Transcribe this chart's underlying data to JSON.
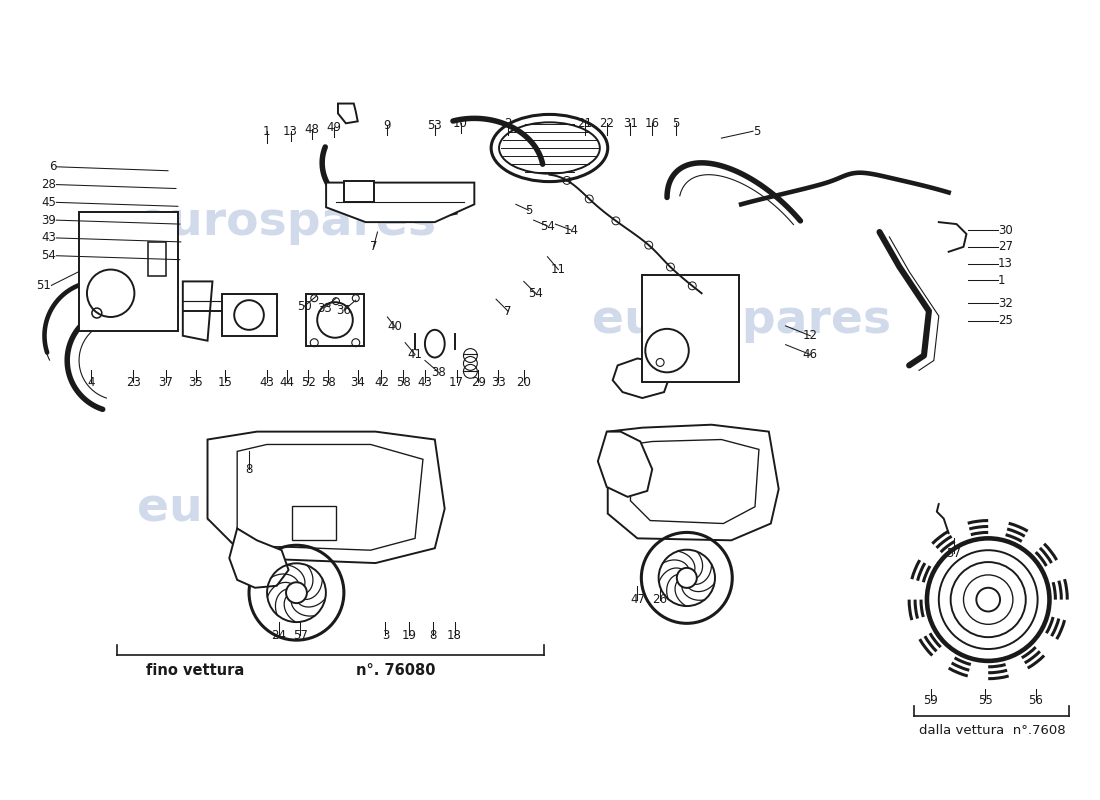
{
  "background_color": "#ffffff",
  "line_color": "#1a1a1a",
  "watermark1_text": "eurospares",
  "watermark2_text": "eurospares",
  "watermark_color": "#c8d4e8",
  "fino_vettura_text": "fino vettura",
  "fino_vettura_num": "n°. 76080",
  "dalla_vettura_text": "dalla vettura  n°.7608",
  "fig_width": 11.0,
  "fig_height": 8.0,
  "dpi": 100,
  "left_labels": [
    [
      "6",
      57,
      625
    ],
    [
      "28",
      57,
      607
    ],
    [
      "45",
      57,
      589
    ],
    [
      "39",
      57,
      572
    ],
    [
      "43",
      57,
      555
    ],
    [
      "54",
      57,
      538
    ]
  ],
  "bottom_row_labels": [
    [
      "4",
      90,
      418
    ],
    [
      "23",
      132,
      418
    ],
    [
      "37",
      175,
      418
    ],
    [
      "35",
      206,
      418
    ],
    [
      "15",
      236,
      418
    ],
    [
      "43",
      280,
      418
    ],
    [
      "44",
      300,
      418
    ],
    [
      "52",
      322,
      418
    ],
    [
      "58",
      342,
      418
    ],
    [
      "34",
      374,
      418
    ],
    [
      "42",
      398,
      418
    ],
    [
      "58",
      421,
      418
    ],
    [
      "43",
      444,
      418
    ],
    [
      "17",
      475,
      418
    ],
    [
      "29",
      495,
      418
    ],
    [
      "33",
      515,
      418
    ],
    [
      "20",
      540,
      418
    ]
  ],
  "top_row_labels": [
    [
      "1",
      268,
      648
    ],
    [
      "13",
      295,
      648
    ],
    [
      "48",
      318,
      648
    ],
    [
      "49",
      342,
      648
    ],
    [
      "9",
      400,
      648
    ],
    [
      "53",
      448,
      648
    ],
    [
      "10",
      476,
      648
    ],
    [
      "2",
      516,
      648
    ]
  ],
  "top_right_labels": [
    [
      "21",
      596,
      665
    ],
    [
      "22",
      618,
      665
    ],
    [
      "31",
      641,
      665
    ],
    [
      "16",
      664,
      665
    ],
    [
      "5",
      690,
      665
    ]
  ],
  "right_labels": [
    [
      "30",
      1010,
      558
    ],
    [
      "27",
      1010,
      540
    ],
    [
      "13",
      1010,
      522
    ],
    [
      "1",
      1010,
      504
    ],
    [
      "32",
      1010,
      487
    ],
    [
      "25",
      1010,
      469
    ]
  ],
  "misc_labels": [
    [
      "51",
      57,
      490
    ],
    [
      "5",
      690,
      665
    ],
    [
      "5",
      576,
      598
    ],
    [
      "54",
      549,
      582
    ],
    [
      "14",
      576,
      580
    ],
    [
      "11",
      568,
      538
    ],
    [
      "54",
      532,
      518
    ],
    [
      "7",
      510,
      500
    ],
    [
      "7",
      383,
      572
    ],
    [
      "50",
      318,
      508
    ],
    [
      "33",
      342,
      505
    ],
    [
      "36",
      365,
      505
    ],
    [
      "40",
      390,
      488
    ],
    [
      "41",
      408,
      462
    ],
    [
      "38",
      428,
      430
    ],
    [
      "12",
      792,
      482
    ],
    [
      "46",
      792,
      462
    ],
    [
      "8",
      252,
      520
    ],
    [
      "24",
      283,
      170
    ],
    [
      "57",
      306,
      170
    ],
    [
      "3",
      388,
      170
    ],
    [
      "19",
      412,
      170
    ],
    [
      "8",
      436,
      170
    ],
    [
      "18",
      460,
      170
    ],
    [
      "47",
      648,
      205
    ],
    [
      "26",
      672,
      205
    ],
    [
      "57",
      968,
      242
    ],
    [
      "59",
      942,
      100
    ],
    [
      "55",
      993,
      100
    ],
    [
      "56",
      1044,
      100
    ]
  ]
}
